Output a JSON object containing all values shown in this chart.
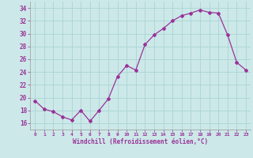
{
  "x": [
    0,
    1,
    2,
    3,
    4,
    5,
    6,
    7,
    8,
    9,
    10,
    11,
    12,
    13,
    14,
    15,
    16,
    17,
    18,
    19,
    20,
    21,
    22,
    23
  ],
  "y": [
    19.5,
    18.2,
    17.8,
    17.0,
    16.5,
    18.0,
    16.3,
    18.0,
    19.8,
    23.3,
    25.0,
    24.3,
    28.3,
    29.8,
    30.8,
    32.0,
    32.8,
    33.2,
    33.7,
    33.3,
    33.2,
    29.8,
    25.5,
    24.3
  ],
  "line_color": "#993399",
  "marker": "D",
  "marker_size": 2,
  "bg_color": "#cce8e8",
  "grid_color": "#aad4d4",
  "xlabel": "Windchill (Refroidissement éolien,°C)",
  "xlabel_color": "#993399",
  "tick_color": "#993399",
  "ylim": [
    15,
    35
  ],
  "yticks": [
    16,
    18,
    20,
    22,
    24,
    26,
    28,
    30,
    32,
    34
  ],
  "xlim": [
    -0.5,
    23.5
  ],
  "xticks": [
    0,
    1,
    2,
    3,
    4,
    5,
    6,
    7,
    8,
    9,
    10,
    11,
    12,
    13,
    14,
    15,
    16,
    17,
    18,
    19,
    20,
    21,
    22,
    23
  ]
}
